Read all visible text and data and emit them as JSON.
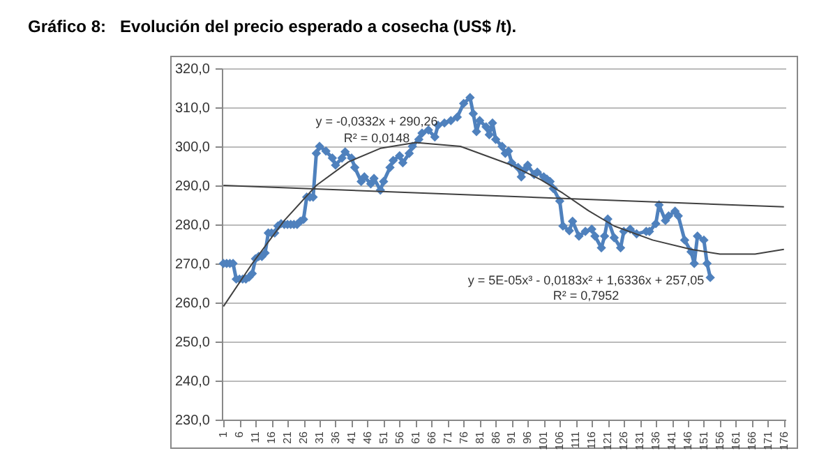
{
  "chart_data": {
    "type": "line",
    "title": "Gráfico 8:   Evolución del precio esperado a cosecha (US$ /t).",
    "xlim": [
      0.5,
      176.5
    ],
    "xticks": [
      1,
      6,
      11,
      16,
      21,
      26,
      31,
      36,
      41,
      46,
      51,
      56,
      61,
      66,
      71,
      76,
      81,
      86,
      91,
      96,
      101,
      106,
      111,
      116,
      121,
      126,
      131,
      136,
      141,
      146,
      151,
      156,
      161,
      166,
      171,
      176
    ],
    "ylim": [
      230,
      320
    ],
    "yticks": [
      {
        "value": 230,
        "label": "230,0"
      },
      {
        "value": 240,
        "label": "240,0"
      },
      {
        "value": 250,
        "label": "250,0"
      },
      {
        "value": 260,
        "label": "260,0"
      },
      {
        "value": 270,
        "label": "270,0"
      },
      {
        "value": 280,
        "label": "280,0"
      },
      {
        "value": 290,
        "label": "290,0"
      },
      {
        "value": 300,
        "label": "300,0"
      },
      {
        "value": 310,
        "label": "310,0"
      },
      {
        "value": 320,
        "label": "320,0"
      }
    ],
    "grid": "y",
    "marker": "diamond",
    "line_style": "solid",
    "series": [
      {
        "color": "#4f81bd",
        "x": [
          1,
          2,
          3,
          4,
          5,
          6,
          7,
          8,
          9,
          10,
          11,
          12,
          13,
          14,
          15,
          16,
          17,
          18,
          19,
          20,
          21,
          22,
          23,
          24,
          25,
          26,
          27,
          28,
          29,
          30,
          31,
          33,
          35,
          36,
          38,
          39,
          41,
          42,
          44,
          45,
          47,
          48,
          50,
          51,
          53,
          54,
          56,
          57,
          59,
          60,
          62,
          63,
          65,
          67,
          68,
          70,
          72,
          74,
          76,
          78,
          79,
          80,
          81,
          83,
          84,
          85,
          86,
          88,
          89,
          90,
          91,
          93,
          94,
          95,
          96,
          98,
          99,
          101,
          102,
          103,
          104,
          106,
          107,
          109,
          110,
          112,
          114,
          116,
          117,
          119,
          120,
          121,
          123,
          125,
          126,
          128,
          130,
          133,
          134,
          136,
          137,
          139,
          140,
          142,
          143,
          145,
          147,
          148,
          149,
          151,
          152,
          153
        ],
        "values": [
          270,
          270,
          270,
          270,
          266,
          266,
          266,
          266,
          266.5,
          267.4,
          271.2,
          271.8,
          271.8,
          272.7,
          277.8,
          277.8,
          277.8,
          279.6,
          280.2,
          280,
          280,
          280,
          280,
          280,
          280.8,
          281.3,
          287,
          287,
          287,
          298.2,
          300,
          298.8,
          297,
          295.2,
          297,
          298.6,
          297,
          294.6,
          291,
          292.2,
          290.4,
          291.8,
          288.8,
          291,
          294.6,
          296.4,
          297.6,
          295.8,
          298.2,
          300,
          301.8,
          303.4,
          304.2,
          302.4,
          305.4,
          306,
          306.6,
          307.5,
          311,
          312.5,
          308.4,
          303.8,
          306.6,
          305,
          303,
          306,
          301.8,
          300,
          298.2,
          298.8,
          295.8,
          294.6,
          292.2,
          294,
          295.2,
          292.8,
          293.4,
          292.2,
          291.6,
          291,
          289.2,
          286,
          279.6,
          278.4,
          280.8,
          277,
          278.2,
          278.8,
          277,
          274,
          277,
          281.4,
          276.6,
          274,
          278.2,
          278.8,
          277.6,
          278.2,
          278.2,
          280.2,
          285,
          281,
          282.2,
          283.4,
          282.2,
          276,
          273,
          270,
          277,
          276,
          270,
          266.4
        ]
      },
      {
        "type": "line",
        "marker": "none",
        "color": "#404040",
        "x": [
          1,
          176
        ],
        "values": [
          290,
          284.5
        ]
      },
      {
        "type": "line",
        "marker": "none",
        "color": "#404040",
        "x": [
          1,
          10,
          20,
          30,
          40,
          50,
          61,
          75,
          90,
          100,
          107,
          115,
          123,
          135,
          147,
          156,
          167,
          176
        ],
        "values": [
          259,
          270,
          281,
          290,
          296,
          299.5,
          301,
          300,
          295.5,
          291.5,
          288,
          283.5,
          279.6,
          276,
          273.6,
          272.4,
          272.4,
          273.6
        ]
      }
    ],
    "annotations": [
      "y = -0,0332x + 290,26",
      "R² = 0,0148",
      "y = 5E-05x³ - 0,0183x² + 1,6336x + 257,05",
      "R² = 0,7952"
    ]
  }
}
